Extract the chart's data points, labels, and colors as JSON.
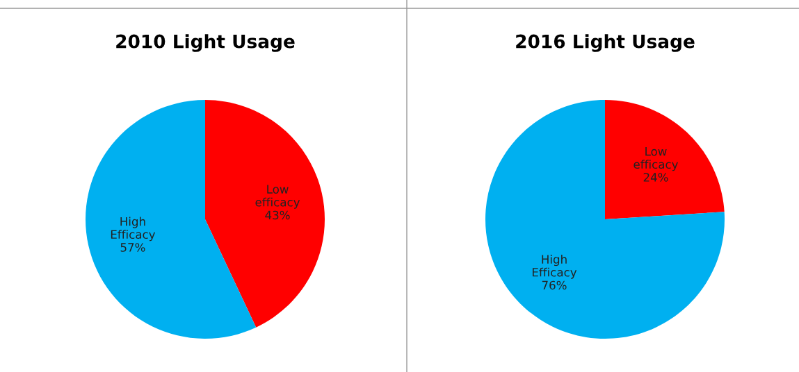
{
  "chart_data": [
    {
      "type": "pie",
      "title": "2010 Light Usage",
      "categories": [
        "Low efficacy",
        "High Efficacy"
      ],
      "values": [
        43,
        57
      ],
      "colors": [
        "#ff0000",
        "#00b0f0"
      ],
      "value_labels": [
        "43%",
        "57%"
      ]
    },
    {
      "type": "pie",
      "title": "2016 Light Usage",
      "categories": [
        "Low efficacy",
        "High Efficacy"
      ],
      "values": [
        24,
        76
      ],
      "colors": [
        "#ff0000",
        "#00b0f0"
      ],
      "value_labels": [
        "24%",
        "76%"
      ]
    }
  ]
}
